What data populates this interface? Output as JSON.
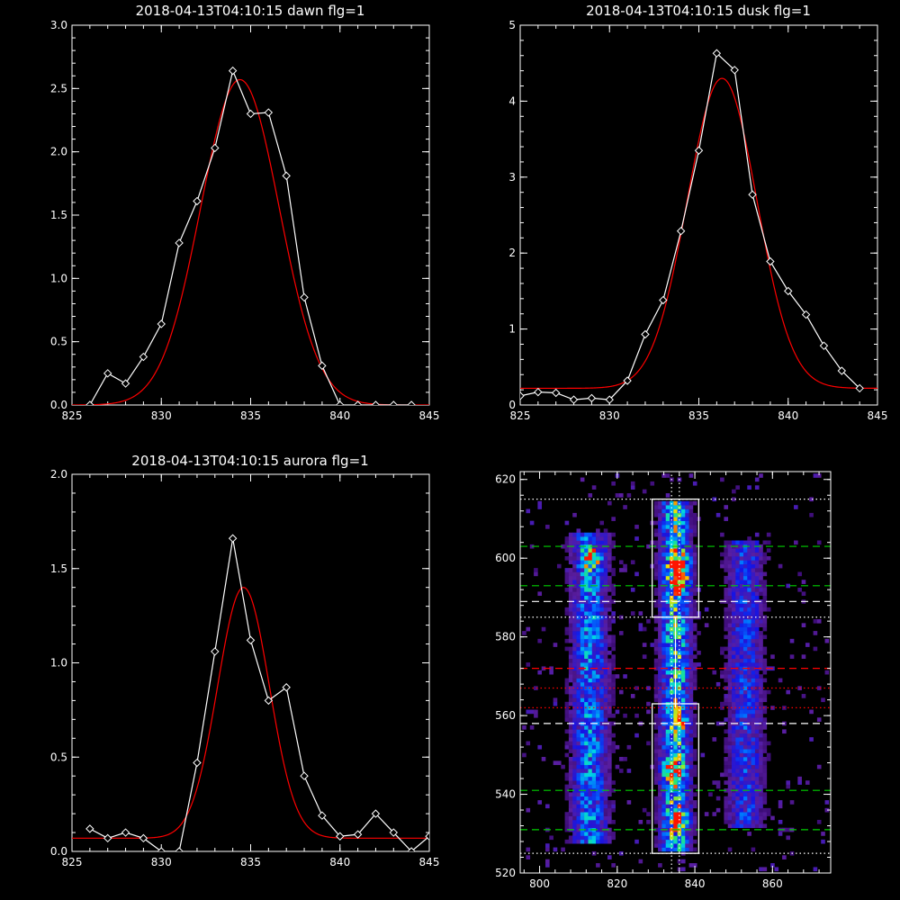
{
  "figure": {
    "background": "#000000",
    "foreground": "#ffffff",
    "data_color": "#ffffff",
    "fit_color": "#ff0000"
  },
  "chart_data": [
    {
      "type": "line",
      "title": "2018-04-13T04:10:15 dawn flg=1",
      "xlim": [
        825,
        845
      ],
      "ylim": [
        0,
        3
      ],
      "xticks": [
        "825",
        "830",
        "835",
        "840",
        "845"
      ],
      "yticks": [
        "0.0",
        "0.5",
        "1.0",
        "1.5",
        "2.0",
        "2.5",
        "3.0"
      ],
      "series": [
        {
          "kind": "data",
          "marker": "diamond",
          "x": [
            826,
            827,
            828,
            829,
            830,
            831,
            832,
            833,
            834,
            835,
            836,
            837,
            838,
            839,
            840,
            841,
            842,
            843,
            844
          ],
          "y": [
            0.0,
            0.25,
            0.17,
            0.38,
            0.64,
            1.28,
            1.61,
            2.03,
            2.64,
            2.3,
            2.31,
            1.81,
            0.85,
            0.31,
            0.0,
            0.0,
            0.0,
            0.0,
            0.0
          ]
        },
        {
          "kind": "fit",
          "shape": "gaussian",
          "amplitude": 2.57,
          "center": 834.4,
          "sigma": 2.2,
          "offset": 0.0
        }
      ]
    },
    {
      "type": "line",
      "title": "2018-04-13T04:10:15 dusk flg=1",
      "xlim": [
        825,
        845
      ],
      "ylim": [
        0,
        5
      ],
      "xticks": [
        "825",
        "830",
        "835",
        "840",
        "845"
      ],
      "yticks": [
        "0",
        "1",
        "2",
        "3",
        "4",
        "5"
      ],
      "series": [
        {
          "kind": "data",
          "marker": "diamond",
          "x": [
            825,
            826,
            827,
            828,
            829,
            830,
            831,
            832,
            833,
            834,
            835,
            836,
            837,
            838,
            839,
            840,
            841,
            842,
            843,
            844
          ],
          "y": [
            0.12,
            0.17,
            0.16,
            0.07,
            0.09,
            0.07,
            0.32,
            0.93,
            1.38,
            2.29,
            3.35,
            4.63,
            4.41,
            2.77,
            1.89,
            1.5,
            1.19,
            0.78,
            0.45,
            0.22
          ]
        },
        {
          "kind": "fit",
          "shape": "gaussian",
          "amplitude": 4.08,
          "center": 836.3,
          "sigma": 1.95,
          "offset": 0.22
        }
      ]
    },
    {
      "type": "line",
      "title": "2018-04-13T04:10:15 aurora flg=1",
      "xlim": [
        825,
        845
      ],
      "ylim": [
        0,
        2
      ],
      "xticks": [
        "825",
        "830",
        "835",
        "840",
        "845"
      ],
      "yticks": [
        "0.0",
        "0.5",
        "1.0",
        "1.5",
        "2.0"
      ],
      "series": [
        {
          "kind": "data",
          "marker": "diamond",
          "x": [
            826,
            827,
            828,
            829,
            830,
            831,
            832,
            833,
            834,
            835,
            836,
            837,
            838,
            839,
            840,
            841,
            842,
            843,
            844,
            845
          ],
          "y": [
            0.12,
            0.07,
            0.1,
            0.07,
            0.0,
            0.0,
            0.47,
            1.06,
            1.66,
            1.12,
            0.8,
            0.87,
            0.4,
            0.19,
            0.08,
            0.09,
            0.2,
            0.1,
            0.0,
            0.08
          ]
        },
        {
          "kind": "fit",
          "shape": "gaussian",
          "amplitude": 1.33,
          "center": 834.6,
          "sigma": 1.45,
          "offset": 0.07
        }
      ]
    },
    {
      "type": "heatmap",
      "title": "",
      "xlim": [
        795,
        875
      ],
      "ylim": [
        520,
        622
      ],
      "xticks": [
        "800",
        "820",
        "840",
        "860"
      ],
      "yticks": [
        "520",
        "540",
        "560",
        "580",
        "600",
        "620"
      ],
      "bands": [
        {
          "x_center": 813,
          "x_width": 6,
          "y_from": 528,
          "y_to": 606,
          "intensity": 0.55
        },
        {
          "x_center": 835,
          "x_width": 5,
          "y_from": 526,
          "y_to": 614,
          "intensity": 0.75
        },
        {
          "x_center": 853,
          "x_width": 6,
          "y_from": 532,
          "y_to": 604,
          "intensity": 0.4
        }
      ],
      "hotspots": [
        {
          "x": 836,
          "y": 599,
          "intensity": 1.0
        },
        {
          "x": 836,
          "y": 594,
          "intensity": 0.9
        },
        {
          "x": 813,
          "y": 600,
          "intensity": 0.85
        },
        {
          "x": 836,
          "y": 534,
          "intensity": 0.8
        },
        {
          "x": 834,
          "y": 546,
          "intensity": 0.7
        },
        {
          "x": 836,
          "y": 559,
          "intensity": 0.6
        }
      ],
      "boxes": [
        {
          "x": [
            829,
            841
          ],
          "y": [
            585,
            615
          ],
          "color": "#ffffff"
        },
        {
          "x": [
            829,
            841
          ],
          "y": [
            525,
            563
          ],
          "color": "#ffffff"
        }
      ],
      "hlines": [
        {
          "y": 615,
          "color": "#ffffff",
          "style": "dotted"
        },
        {
          "y": 603,
          "color": "#00d000",
          "style": "dashed"
        },
        {
          "y": 593,
          "color": "#00d000",
          "style": "dashed"
        },
        {
          "y": 589,
          "color": "#ffffff",
          "style": "dashed"
        },
        {
          "y": 585,
          "color": "#ffffff",
          "style": "dotted"
        },
        {
          "y": 572,
          "color": "#ff0000",
          "style": "dashed"
        },
        {
          "y": 567,
          "color": "#ff0000",
          "style": "dotted"
        },
        {
          "y": 562,
          "color": "#ff0000",
          "style": "dotted"
        },
        {
          "y": 558,
          "color": "#ffffff",
          "style": "dashed"
        },
        {
          "y": 541,
          "color": "#00d000",
          "style": "dashed"
        },
        {
          "y": 531,
          "color": "#00d000",
          "style": "dashed"
        },
        {
          "y": 525,
          "color": "#ffffff",
          "style": "dotted"
        }
      ],
      "vlines": [
        {
          "x": 834,
          "color": "#ffffff",
          "style": "dotted"
        },
        {
          "x": 836,
          "color": "#ffffff",
          "style": "dotted"
        },
        {
          "x": 835,
          "color": "#ffffff",
          "style": "solid",
          "y": [
            562,
            585
          ]
        }
      ]
    }
  ]
}
